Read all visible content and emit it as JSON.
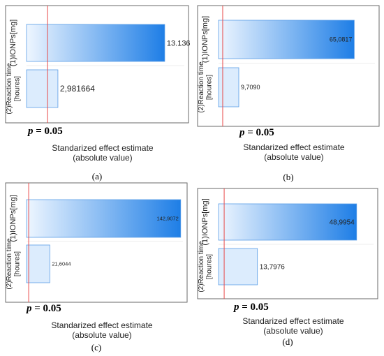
{
  "chart_data": [
    {
      "type": "bar",
      "orientation": "horizontal",
      "categories": [
        "(1)IONPs[mg]",
        "(2)Reaction time [houres]"
      ],
      "values": [
        13.136,
        2.981664
      ],
      "value_labels": [
        "13.136",
        "2,981664"
      ],
      "threshold": {
        "value": 2.0,
        "label_prefix": "p",
        "label_suffix": " = 0.05"
      },
      "xlabel": "Standarized effect estimate",
      "xlabel2": "(absolute value)",
      "xlim": [
        0,
        15
      ],
      "caption": "(a)",
      "grid": false
    },
    {
      "type": "bar",
      "orientation": "horizontal",
      "categories": [
        "(1)IONPs[mg]",
        "(2)Reaction time [houres]"
      ],
      "values": [
        65.0817,
        9.709
      ],
      "value_labels": [
        "65,0817",
        "9,7090"
      ],
      "threshold": {
        "value": 2.0,
        "label_prefix": "p",
        "label_suffix": " = 0.05"
      },
      "xlabel": "Standarized effect estimate",
      "xlabel2": "(absolute value)",
      "xlim": [
        0,
        75
      ],
      "caption": "(b)",
      "grid": false
    },
    {
      "type": "bar",
      "orientation": "horizontal",
      "categories": [
        "(1)IONPs[mg]",
        "(2)Reaction time [houres]"
      ],
      "values": [
        142.9072,
        21.6044
      ],
      "value_labels": [
        "142,9072",
        "21,6044"
      ],
      "threshold": {
        "value": 2.0,
        "label_prefix": "p",
        "label_suffix": " = 0.05"
      },
      "xlabel": "Standarized effect estimate",
      "xlabel2": "(absolute value)",
      "xlim": [
        0,
        145
      ],
      "caption": "(c)",
      "grid": false
    },
    {
      "type": "bar",
      "orientation": "horizontal",
      "categories": [
        "(1)IONPs[mg]",
        "(2)Reaction time [houres]"
      ],
      "values": [
        48.9954,
        13.7976
      ],
      "value_labels": [
        "48,9954",
        "13,7976"
      ],
      "threshold": {
        "value": 2.0,
        "label_prefix": "p",
        "label_suffix": " = 0.05"
      },
      "xlabel": "Standarized effect estimate",
      "xlabel2": "(absolute value)",
      "xlim": [
        0,
        55
      ],
      "caption": "(d)",
      "grid": false
    }
  ],
  "colors": {
    "bar_dark": "#1e7ee6",
    "bar_light": "#eef6ff",
    "threshold_line": "#e84a4a",
    "frame": "#6a6a6a"
  }
}
